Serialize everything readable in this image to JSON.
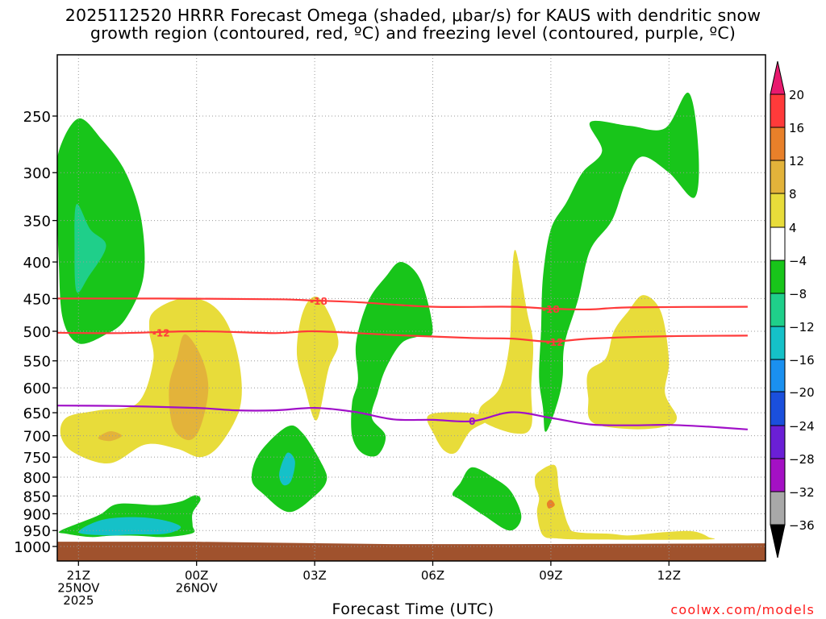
{
  "title": {
    "line1": "2025112520 HRRR Forecast Omega (shaded, μbar/s) for KAUS with dendritic snow",
    "line2": "growth region (contoured, red, ºC) and freezing level (contoured, purple, ºC)"
  },
  "x_axis_title": "Forecast Time (UTC)",
  "credit": "coolwx.com/models",
  "chart_data": {
    "type": "time-height cross section",
    "x_axis": {
      "unit": "hours from 2025-11-25 20Z",
      "range": [
        0,
        18
      ],
      "ticks": [
        {
          "value": 1,
          "lines": [
            "21Z",
            "25NOV",
            "2025"
          ]
        },
        {
          "value": 4,
          "lines": [
            "00Z",
            "26NOV"
          ]
        },
        {
          "value": 7,
          "lines": [
            "03Z"
          ]
        },
        {
          "value": 10,
          "lines": [
            "06Z"
          ]
        },
        {
          "value": 13,
          "lines": [
            "09Z"
          ]
        },
        {
          "value": 16,
          "lines": [
            "12Z"
          ]
        }
      ]
    },
    "y_axis": {
      "unit": "hPa",
      "scale": "log",
      "range": [
        1050,
        200
      ],
      "ticks": [
        250,
        300,
        350,
        400,
        450,
        500,
        550,
        600,
        650,
        700,
        750,
        800,
        850,
        900,
        950,
        1000
      ]
    },
    "grid": true,
    "colorbar": {
      "labels": [
        "20",
        "16",
        "12",
        "8",
        "4",
        "−4",
        "−8",
        "−12",
        "−16",
        "−20",
        "−24",
        "−28",
        "−32",
        "−36"
      ],
      "colors": [
        "#e8196e",
        "#ff3a3a",
        "#e8802a",
        "#e3b33a",
        "#e8dc3a",
        "#ffffff",
        "#18c51a",
        "#1fcf8a",
        "#15c1c8",
        "#1a90f0",
        "#1a4fdc",
        "#6a1fd6",
        "#a410c4",
        "#a8a8a8",
        "#000000"
      ]
    },
    "contours": [
      {
        "label": "-18",
        "color": "#ff3a3a",
        "points": [
          [
            0,
            450
          ],
          [
            3,
            450
          ],
          [
            6,
            451
          ],
          [
            7,
            453
          ],
          [
            8,
            455
          ],
          [
            10,
            462
          ],
          [
            12,
            462
          ],
          [
            13,
            465
          ],
          [
            14,
            466
          ],
          [
            15,
            463
          ],
          [
            18,
            462
          ]
        ]
      },
      {
        "label": "-12",
        "color": "#ff3a3a",
        "points": [
          [
            0,
            502
          ],
          [
            2,
            503
          ],
          [
            4,
            500
          ],
          [
            6,
            503
          ],
          [
            7,
            500
          ],
          [
            9,
            506
          ],
          [
            11,
            511
          ],
          [
            12,
            512
          ],
          [
            13,
            517
          ],
          [
            14,
            512
          ],
          [
            16,
            508
          ],
          [
            18,
            507
          ]
        ]
      },
      {
        "label": "0",
        "color": "#a010c8",
        "points": [
          [
            0,
            635
          ],
          [
            2,
            636
          ],
          [
            4,
            640
          ],
          [
            5,
            645
          ],
          [
            6,
            645
          ],
          [
            7,
            640
          ],
          [
            8,
            648
          ],
          [
            9,
            664
          ],
          [
            10,
            665
          ],
          [
            11,
            668
          ],
          [
            12,
            649
          ],
          [
            13,
            661
          ],
          [
            14,
            675
          ],
          [
            15,
            677
          ],
          [
            16,
            676
          ],
          [
            17,
            680
          ],
          [
            18,
            686
          ]
        ]
      }
    ],
    "contour_labels": [
      {
        "text": "-18",
        "x": 7.1,
        "p": 453
      },
      {
        "text": "-18",
        "x": 13.0,
        "p": 465
      },
      {
        "text": "-12",
        "x": 3.1,
        "p": 502
      },
      {
        "text": "-12",
        "x": 13.1,
        "p": 517
      },
      {
        "text": "0",
        "x": 11.0,
        "p": 667
      }
    ],
    "shaded_regions": [
      {
        "color": "#18c51a",
        "points": [
          [
            0.5,
            280
          ],
          [
            1.0,
            252
          ],
          [
            1.6,
            270
          ],
          [
            2.2,
            300
          ],
          [
            2.6,
            350
          ],
          [
            2.65,
            420
          ],
          [
            2.2,
            480
          ],
          [
            1.7,
            505
          ],
          [
            1.0,
            520
          ],
          [
            0.6,
            480
          ],
          [
            0.5,
            400
          ],
          [
            0.45,
            320
          ]
        ]
      },
      {
        "color": "#1fcf8a",
        "points": [
          [
            0.95,
            332
          ],
          [
            1.3,
            360
          ],
          [
            1.7,
            380
          ],
          [
            1.25,
            420
          ],
          [
            0.95,
            440
          ],
          [
            0.9,
            380
          ]
        ]
      },
      {
        "color": "#e8dc3a",
        "points": [
          [
            2.9,
            470
          ],
          [
            3.6,
            450
          ],
          [
            4.3,
            456
          ],
          [
            4.8,
            490
          ],
          [
            5.1,
            560
          ],
          [
            5.1,
            640
          ],
          [
            4.6,
            720
          ],
          [
            4.1,
            750
          ],
          [
            3.5,
            730
          ],
          [
            2.7,
            720
          ],
          [
            1.8,
            765
          ],
          [
            0.9,
            740
          ],
          [
            0.55,
            700
          ],
          [
            0.7,
            660
          ],
          [
            1.5,
            645
          ],
          [
            2.5,
            630
          ],
          [
            2.9,
            550
          ],
          [
            2.8,
            500
          ]
        ]
      },
      {
        "color": "#e3b33a",
        "points": [
          [
            3.7,
            505
          ],
          [
            4.1,
            540
          ],
          [
            4.3,
            600
          ],
          [
            4.1,
            680
          ],
          [
            3.8,
            710
          ],
          [
            3.4,
            680
          ],
          [
            3.3,
            600
          ],
          [
            3.5,
            545
          ]
        ]
      },
      {
        "color": "#e3b33a",
        "points": [
          [
            1.8,
            690
          ],
          [
            2.1,
            700
          ],
          [
            1.8,
            712
          ],
          [
            1.5,
            705
          ]
        ]
      },
      {
        "color": "#18c51a",
        "points": [
          [
            0.55,
            950
          ],
          [
            1.5,
            905
          ],
          [
            2.0,
            872
          ],
          [
            3.0,
            875
          ],
          [
            3.6,
            865
          ],
          [
            3.95,
            848
          ],
          [
            4.1,
            860
          ],
          [
            3.9,
            898
          ],
          [
            3.9,
            935
          ],
          [
            3.9,
            958
          ],
          [
            3.2,
            970
          ],
          [
            2.5,
            966
          ],
          [
            1.8,
            966
          ],
          [
            1.3,
            970
          ],
          [
            0.7,
            960
          ]
        ]
      },
      {
        "color": "#15c1c8",
        "points": [
          [
            1.0,
            955
          ],
          [
            1.6,
            918
          ],
          [
            2.5,
            910
          ],
          [
            3.2,
            920
          ],
          [
            3.6,
            940
          ],
          [
            3.2,
            960
          ],
          [
            2.4,
            962
          ],
          [
            1.7,
            965
          ]
        ]
      },
      {
        "color": "#18c51a",
        "points": [
          [
            6.3,
            680
          ],
          [
            6.7,
            695
          ],
          [
            7.2,
            770
          ],
          [
            7.3,
            810
          ],
          [
            7.0,
            850
          ],
          [
            6.35,
            895
          ],
          [
            5.7,
            845
          ],
          [
            5.4,
            805
          ],
          [
            5.6,
            740
          ]
        ]
      },
      {
        "color": "#15c1c8",
        "points": [
          [
            6.3,
            740
          ],
          [
            6.5,
            760
          ],
          [
            6.4,
            810
          ],
          [
            6.2,
            820
          ],
          [
            6.1,
            790
          ]
        ]
      },
      {
        "color": "#e8dc3a",
        "points": [
          [
            6.9,
            450
          ],
          [
            7.2,
            455
          ],
          [
            7.6,
            515
          ],
          [
            7.35,
            565
          ],
          [
            7.05,
            666
          ],
          [
            6.75,
            600
          ],
          [
            6.55,
            540
          ],
          [
            6.65,
            480
          ]
        ]
      },
      {
        "color": "#18c51a",
        "points": [
          [
            8.8,
            420
          ],
          [
            9.2,
            400
          ],
          [
            9.7,
            425
          ],
          [
            10.0,
            500
          ],
          [
            9.65,
            508
          ],
          [
            9.2,
            520
          ],
          [
            8.8,
            565
          ],
          [
            8.6,
            610
          ],
          [
            8.45,
            660
          ],
          [
            8.8,
            700
          ],
          [
            8.6,
            745
          ],
          [
            8.2,
            740
          ],
          [
            7.95,
            700
          ],
          [
            7.95,
            630
          ],
          [
            8.1,
            585
          ],
          [
            8.05,
            520
          ],
          [
            8.35,
            455
          ]
        ]
      },
      {
        "color": "#e8dc3a",
        "points": [
          [
            9.9,
            655
          ],
          [
            10.9,
            650
          ],
          [
            11.4,
            665
          ],
          [
            10.95,
            690
          ],
          [
            10.6,
            738
          ],
          [
            10.3,
            735
          ],
          [
            10.05,
            700
          ]
        ]
      },
      {
        "color": "#e8dc3a",
        "points": [
          [
            12.1,
            385
          ],
          [
            12.4,
            470
          ],
          [
            12.55,
            520
          ],
          [
            12.5,
            600
          ],
          [
            12.5,
            680
          ],
          [
            12.1,
            695
          ],
          [
            11.3,
            670
          ],
          [
            11.2,
            640
          ],
          [
            11.7,
            600
          ],
          [
            11.95,
            520
          ],
          [
            12.0,
            440
          ]
        ]
      },
      {
        "color": "#18c51a",
        "points": [
          [
            10.7,
            815
          ],
          [
            11.0,
            775
          ],
          [
            11.6,
            805
          ],
          [
            12.0,
            840
          ],
          [
            12.25,
            910
          ],
          [
            11.95,
            950
          ],
          [
            11.3,
            905
          ],
          [
            10.7,
            860
          ],
          [
            10.5,
            845
          ]
        ]
      },
      {
        "color": "#18c51a",
        "points": [
          [
            14.3,
            280
          ],
          [
            14.0,
            255
          ],
          [
            15.0,
            258
          ],
          [
            15.9,
            260
          ],
          [
            16.5,
            232
          ],
          [
            16.75,
            280
          ],
          [
            16.65,
            325
          ],
          [
            16.0,
            300
          ],
          [
            15.3,
            285
          ],
          [
            14.9,
            310
          ],
          [
            14.55,
            350
          ],
          [
            14.0,
            385
          ],
          [
            13.7,
            450
          ],
          [
            13.35,
            520
          ],
          [
            13.3,
            580
          ],
          [
            13.2,
            620
          ],
          [
            13.0,
            670
          ],
          [
            12.85,
            690
          ],
          [
            12.8,
            640
          ],
          [
            12.7,
            580
          ],
          [
            12.75,
            500
          ],
          [
            12.8,
            420
          ],
          [
            13.0,
            360
          ],
          [
            13.4,
            330
          ],
          [
            13.8,
            300
          ]
        ]
      },
      {
        "color": "#e8dc3a",
        "points": [
          [
            14.95,
            470
          ],
          [
            15.35,
            445
          ],
          [
            15.8,
            470
          ],
          [
            16.0,
            550
          ],
          [
            15.9,
            610
          ],
          [
            16.2,
            660
          ],
          [
            15.9,
            680
          ],
          [
            15.0,
            685
          ],
          [
            14.05,
            670
          ],
          [
            13.95,
            620
          ],
          [
            13.95,
            570
          ],
          [
            14.4,
            545
          ],
          [
            14.6,
            500
          ]
        ]
      },
      {
        "color": "#e8dc3a",
        "points": [
          [
            12.65,
            790
          ],
          [
            13.1,
            770
          ],
          [
            13.2,
            830
          ],
          [
            13.3,
            880
          ],
          [
            13.45,
            935
          ],
          [
            13.65,
            955
          ],
          [
            14.5,
            960
          ],
          [
            15.0,
            965
          ],
          [
            15.9,
            955
          ],
          [
            16.6,
            952
          ],
          [
            17.0,
            970
          ],
          [
            16.9,
            978
          ],
          [
            14.0,
            978
          ],
          [
            13.2,
            975
          ],
          [
            12.8,
            965
          ],
          [
            12.65,
            900
          ],
          [
            12.7,
            855
          ],
          [
            12.6,
            820
          ]
        ]
      },
      {
        "color": "#e8802a",
        "points": [
          [
            13.0,
            860
          ],
          [
            13.1,
            875
          ],
          [
            12.95,
            885
          ],
          [
            12.9,
            870
          ]
        ]
      }
    ],
    "terrain": {
      "color": "#a0522d",
      "top_pressure": 985
    }
  }
}
